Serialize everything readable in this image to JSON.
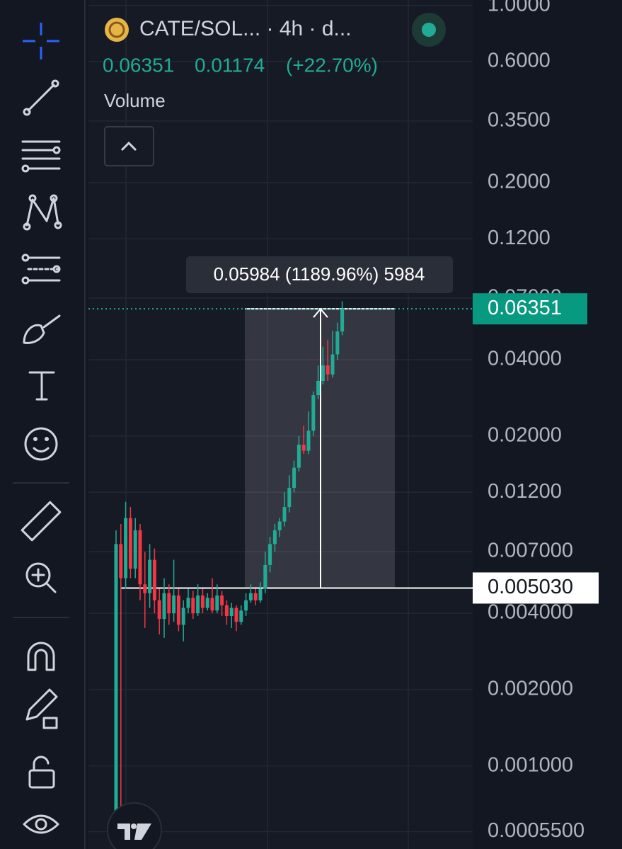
{
  "chart_data": {
    "type": "candlestick",
    "title": "CATE/SOL... · 4h · d...",
    "last_price": 0.06351,
    "change": 0.01174,
    "change_pct": {
      "value": 22.7,
      "label": "(+22.70%)"
    },
    "indicator": "Volume",
    "measure_label": "0.05984 (1189.96%) 5984",
    "crosshair_price": {
      "value": 0.00503,
      "label": "0.005030"
    },
    "log_scale": true,
    "grid": true,
    "up_color": "#22ab94",
    "down_color": "#f23645",
    "ylim": [
      0.00047,
      1.05
    ],
    "yticks": [
      {
        "value": 1,
        "label": "1.0000"
      },
      {
        "value": 0.6,
        "label": "0.6000"
      },
      {
        "value": 0.35,
        "label": "0.3500"
      },
      {
        "value": 0.2,
        "label": "0.2000"
      },
      {
        "value": 0.12,
        "label": "0.1200"
      },
      {
        "value": 0.07,
        "label": "0.07000"
      },
      {
        "value": 0.04,
        "label": "0.04000"
      },
      {
        "value": 0.02,
        "label": "0.02000"
      },
      {
        "value": 0.012,
        "label": "0.01200"
      },
      {
        "value": 0.007,
        "label": "0.007000"
      },
      {
        "value": 0.004,
        "label": "0.004000"
      },
      {
        "value": 0.002,
        "label": "0.002000"
      },
      {
        "value": 0.001,
        "label": "0.001000"
      },
      {
        "value": 0.00055,
        "label": "0.0005500"
      }
    ],
    "open": [
      0.00055,
      0.0075,
      0.0055,
      0.0095,
      0.006,
      0.0085,
      0.0052,
      0.0048,
      0.0065,
      0.0045,
      0.0038,
      0.0048,
      0.004,
      0.0047,
      0.0036,
      0.0042,
      0.0046,
      0.004,
      0.0047,
      0.0042,
      0.0046,
      0.0041,
      0.0047,
      0.0043,
      0.0039,
      0.0042,
      0.0037,
      0.0041,
      0.0045,
      0.0048,
      0.0045,
      0.005,
      0.0062,
      0.0075,
      0.0085,
      0.0092,
      0.0105,
      0.0125,
      0.015,
      0.0185,
      0.0175,
      0.021,
      0.029,
      0.033,
      0.038,
      0.035,
      0.042,
      0.0517
    ],
    "high": [
      0.0085,
      0.009,
      0.011,
      0.0105,
      0.0095,
      0.009,
      0.007,
      0.0075,
      0.0072,
      0.005,
      0.0055,
      0.0052,
      0.0065,
      0.005,
      0.0045,
      0.005,
      0.0049,
      0.0052,
      0.005,
      0.0048,
      0.0055,
      0.0052,
      0.0049,
      0.0045,
      0.0044,
      0.0043,
      0.0043,
      0.0048,
      0.0052,
      0.005,
      0.0053,
      0.007,
      0.008,
      0.009,
      0.0095,
      0.012,
      0.014,
      0.016,
      0.02,
      0.022,
      0.025,
      0.03,
      0.038,
      0.045,
      0.048,
      0.052,
      0.056,
      0.068
    ],
    "low": [
      0.0005,
      0.0006,
      0.005,
      0.0055,
      0.0055,
      0.0045,
      0.0035,
      0.0042,
      0.004,
      0.0033,
      0.0032,
      0.0036,
      0.0037,
      0.0034,
      0.0031,
      0.004,
      0.0038,
      0.0039,
      0.004,
      0.0041,
      0.004,
      0.004,
      0.0039,
      0.0036,
      0.0035,
      0.0034,
      0.0036,
      0.0039,
      0.0044,
      0.0043,
      0.0044,
      0.0048,
      0.0058,
      0.007,
      0.008,
      0.0088,
      0.01,
      0.012,
      0.0145,
      0.017,
      0.017,
      0.02,
      0.028,
      0.032,
      0.033,
      0.034,
      0.04,
      0.05
    ],
    "close": [
      0.0075,
      0.0055,
      0.0095,
      0.006,
      0.0085,
      0.0052,
      0.0048,
      0.0065,
      0.0045,
      0.0038,
      0.0048,
      0.004,
      0.0047,
      0.0036,
      0.0042,
      0.0046,
      0.004,
      0.0047,
      0.0042,
      0.0046,
      0.0041,
      0.0047,
      0.0043,
      0.0039,
      0.0042,
      0.0037,
      0.0041,
      0.0045,
      0.0048,
      0.0045,
      0.005,
      0.0062,
      0.0075,
      0.0085,
      0.0092,
      0.0105,
      0.0125,
      0.015,
      0.0185,
      0.0175,
      0.021,
      0.029,
      0.033,
      0.038,
      0.035,
      0.042,
      0.0517,
      0.06351
    ]
  }
}
